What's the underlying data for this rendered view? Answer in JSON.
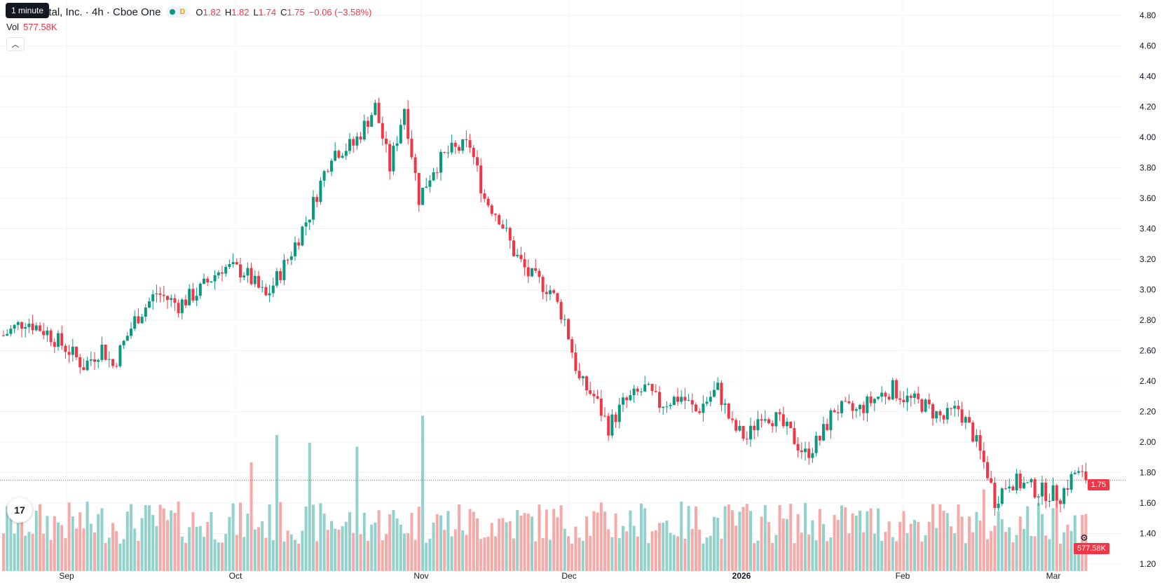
{
  "header": {
    "symbol_title": "ital, Inc. · 4h · Cboe One",
    "tooltip": "1 minute",
    "o_label": "O",
    "o_value": "1.82",
    "h_label": "H",
    "h_value": "1.82",
    "l_label": "L",
    "l_value": "1.74",
    "c_label": "C",
    "c_value": "1.75",
    "change": "−0.06 (−3.58%)",
    "d_badge": "D"
  },
  "volume": {
    "label": "Vol",
    "value": "577.58K"
  },
  "price_labels": {
    "last_price": "1.75",
    "last_volume": "577.58K"
  },
  "colors": {
    "up": "#089981",
    "down": "#f23645",
    "up_vol": "#92d2cc",
    "down_vol": "#f7a9a7",
    "grid": "#f0f3fa"
  },
  "icons": {
    "logo": "tradingview-logo-icon",
    "collapse": "chevron-up-icon",
    "settings": "gear-icon"
  },
  "chart_data": {
    "type": "candlestick",
    "timeframe": "4h",
    "y_ticks": [
      "4.80",
      "4.60",
      "4.40",
      "4.20",
      "4.00",
      "3.80",
      "3.60",
      "3.40",
      "3.20",
      "3.00",
      "2.80",
      "2.60",
      "2.40",
      "2.20",
      "2.00",
      "1.80",
      "1.60",
      "1.40",
      "1.20"
    ],
    "ylim": [
      1.2,
      4.8
    ],
    "x_ticks": [
      {
        "label": "Sep",
        "bold": false
      },
      {
        "label": "Oct",
        "bold": false
      },
      {
        "label": "Nov",
        "bold": false
      },
      {
        "label": "Dec",
        "bold": false
      },
      {
        "label": "2026",
        "bold": true
      },
      {
        "label": "Feb",
        "bold": false
      },
      {
        "label": "Mar",
        "bold": false
      }
    ],
    "last_price": 1.75,
    "anchors": [
      [
        0,
        2.7
      ],
      [
        6,
        2.8
      ],
      [
        12,
        2.72
      ],
      [
        18,
        2.6
      ],
      [
        22,
        2.5
      ],
      [
        27,
        2.62
      ],
      [
        30,
        2.5
      ],
      [
        36,
        2.8
      ],
      [
        42,
        2.98
      ],
      [
        48,
        2.9
      ],
      [
        54,
        3.0
      ],
      [
        60,
        3.15
      ],
      [
        66,
        3.12
      ],
      [
        72,
        2.95
      ],
      [
        78,
        3.2
      ],
      [
        84,
        3.5
      ],
      [
        90,
        3.9
      ],
      [
        96,
        3.95
      ],
      [
        102,
        4.2
      ],
      [
        106,
        3.8
      ],
      [
        110,
        4.2
      ],
      [
        114,
        3.6
      ],
      [
        118,
        3.8
      ],
      [
        122,
        3.9
      ],
      [
        128,
        3.95
      ],
      [
        132,
        3.6
      ],
      [
        136,
        3.48
      ],
      [
        140,
        3.25
      ],
      [
        144,
        3.1
      ],
      [
        150,
        3.0
      ],
      [
        154,
        2.8
      ],
      [
        158,
        2.4
      ],
      [
        162,
        2.3
      ],
      [
        166,
        2.1
      ],
      [
        170,
        2.25
      ],
      [
        176,
        2.35
      ],
      [
        180,
        2.25
      ],
      [
        186,
        2.3
      ],
      [
        190,
        2.2
      ],
      [
        196,
        2.35
      ],
      [
        200,
        2.1
      ],
      [
        204,
        2.02
      ],
      [
        208,
        2.2
      ],
      [
        212,
        2.15
      ],
      [
        216,
        2.05
      ],
      [
        220,
        1.92
      ],
      [
        224,
        2.02
      ],
      [
        228,
        2.22
      ],
      [
        234,
        2.2
      ],
      [
        240,
        2.3
      ],
      [
        244,
        2.35
      ],
      [
        248,
        2.28
      ],
      [
        252,
        2.25
      ],
      [
        258,
        2.15
      ],
      [
        262,
        2.22
      ],
      [
        266,
        2.05
      ],
      [
        270,
        1.8
      ],
      [
        272,
        1.62
      ],
      [
        276,
        1.75
      ],
      [
        280,
        1.72
      ],
      [
        284,
        1.68
      ],
      [
        290,
        1.65
      ],
      [
        294,
        1.8
      ],
      [
        297,
        1.75
      ]
    ],
    "volume_max": 2.3,
    "volume_spikes": {
      "75": 1.75,
      "84": 1.65,
      "97": 1.6,
      "115": 2.0,
      "68": 1.4,
      "269": 1.05,
      "289": 1.05
    }
  }
}
